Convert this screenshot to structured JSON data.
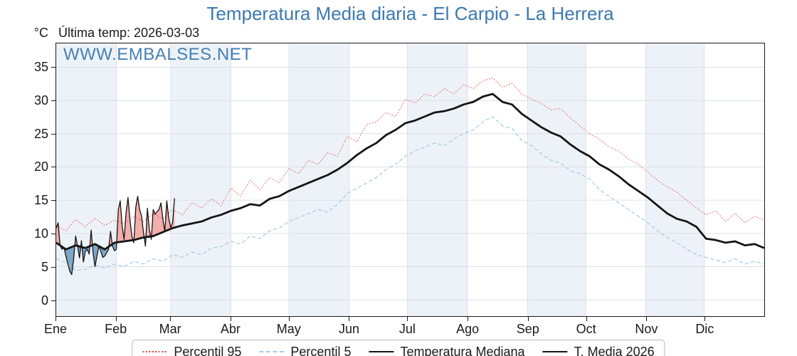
{
  "title": {
    "text": "Temperatura Media diaria - El Carpio - La Herrera",
    "color": "#3b79b1"
  },
  "header": {
    "y_unit_label": "°C",
    "last_temp_annotation": "Última temp: 2026-03-03"
  },
  "watermark": {
    "text": "WWW.EMBALSES.NET",
    "color": "#3b79b1"
  },
  "chart_data": {
    "type": "line",
    "title": "Temperatura Media diaria - El Carpio - La Herrera",
    "x_axis": {
      "unit": "day_of_year",
      "max": 365,
      "month_labels": [
        "Ene",
        "Feb",
        "Mar",
        "Abr",
        "May",
        "Jun",
        "Jul",
        "Ago",
        "Sep",
        "Oct",
        "Nov",
        "Dic"
      ],
      "month_day_starts": [
        0,
        31,
        59,
        90,
        120,
        151,
        181,
        212,
        243,
        273,
        304,
        334
      ]
    },
    "y_axis": {
      "unit": "°C",
      "lim": [
        -2.45,
        38.6
      ],
      "ticks": [
        0,
        5,
        10,
        15,
        20,
        25,
        30,
        35
      ]
    },
    "style": {
      "band_fill": "#edf2f8",
      "grid_color": "#dcdfe4",
      "axis_color": "#1a1a1a",
      "fill_above_color": "#f2aeab",
      "fill_below_color": "#7ea6c8"
    },
    "series": [
      {
        "name": "Percentil 95",
        "color": "#e05252",
        "line": "dotted",
        "width": 1.1,
        "sample_step_days": 5,
        "values": [
          11.2,
          10.4,
          12.1,
          11.0,
          12.3,
          11.2,
          12.0,
          11.4,
          12.6,
          11.8,
          13.0,
          12.2,
          13.6,
          12.8,
          14.6,
          13.8,
          15.2,
          14.2,
          16.8,
          15.6,
          18.0,
          16.6,
          18.4,
          17.6,
          19.8,
          19.0,
          21.0,
          20.4,
          22.2,
          21.6,
          24.6,
          23.8,
          26.4,
          26.8,
          28.2,
          27.6,
          30.2,
          29.6,
          31.0,
          30.6,
          31.8,
          31.0,
          32.4,
          31.8,
          33.0,
          33.4,
          32.0,
          32.6,
          31.0,
          30.2,
          29.6,
          28.6,
          28.8,
          27.4,
          26.2,
          25.0,
          24.2,
          23.0,
          22.4,
          21.2,
          20.4,
          19.2,
          18.0,
          17.0,
          16.2,
          15.0,
          13.8,
          12.8,
          13.4,
          11.8,
          13.0,
          11.6,
          12.6,
          12.0
        ]
      },
      {
        "name": "Percentil 5",
        "color": "#a8cfe4",
        "line": "dashed",
        "width": 1.3,
        "sample_step_days": 5,
        "values": [
          6.2,
          5.6,
          4.4,
          4.6,
          5.2,
          4.8,
          5.4,
          5.0,
          5.8,
          5.4,
          6.2,
          5.8,
          6.8,
          6.4,
          7.2,
          6.8,
          7.8,
          8.0,
          8.8,
          8.4,
          9.6,
          9.2,
          10.4,
          10.8,
          11.8,
          12.4,
          13.0,
          13.6,
          13.2,
          14.4,
          16.0,
          16.8,
          17.6,
          18.4,
          19.6,
          20.4,
          21.6,
          22.4,
          23.0,
          23.6,
          23.2,
          24.2,
          25.0,
          25.6,
          26.8,
          27.6,
          26.2,
          25.8,
          24.0,
          23.2,
          22.0,
          21.0,
          20.6,
          19.4,
          19.0,
          18.2,
          16.6,
          15.6,
          14.6,
          13.6,
          12.6,
          11.6,
          10.4,
          9.4,
          8.6,
          7.6,
          6.8,
          6.4,
          6.0,
          5.6,
          6.2,
          5.4,
          5.8,
          5.4
        ]
      },
      {
        "name": "Temperatura Mediana",
        "color": "#141414",
        "line": "solid",
        "width": 2.8,
        "sample_step_days": 5,
        "values": [
          8.6,
          7.6,
          8.2,
          7.8,
          8.4,
          7.6,
          8.6,
          8.8,
          9.0,
          9.4,
          9.6,
          10.2,
          10.8,
          11.2,
          11.5,
          11.8,
          12.4,
          12.8,
          13.4,
          13.8,
          14.4,
          14.2,
          15.2,
          15.6,
          16.4,
          17.0,
          17.6,
          18.2,
          18.8,
          19.6,
          20.6,
          21.8,
          22.8,
          23.6,
          24.8,
          25.6,
          26.6,
          27.0,
          27.6,
          28.2,
          28.4,
          28.8,
          29.4,
          29.8,
          30.6,
          31.0,
          29.8,
          29.4,
          28.0,
          27.0,
          26.0,
          25.2,
          24.6,
          23.4,
          22.4,
          21.6,
          20.4,
          19.6,
          18.6,
          17.4,
          16.4,
          15.4,
          14.2,
          13.0,
          12.2,
          11.8,
          11.0,
          9.2,
          9.0,
          8.6,
          8.8,
          8.2,
          8.4,
          7.8
        ]
      },
      {
        "name": "T. Media 2026",
        "color": "#141414",
        "line": "solid",
        "width": 1.3,
        "sample_step_days": 1,
        "start_day": 0,
        "values": [
          10.8,
          11.6,
          8.2,
          7.6,
          7.9,
          6.6,
          5.4,
          4.3,
          3.8,
          6.2,
          9.6,
          8.1,
          6.3,
          8.9,
          5.7,
          7.3,
          7.6,
          6.9,
          10.5,
          7.1,
          5.0,
          6.6,
          8.1,
          7.3,
          6.4,
          6.6,
          7.1,
          7.6,
          10.3,
          8.1,
          7.4,
          7.6,
          13.6,
          14.9,
          11.1,
          9.1,
          13.1,
          15.4,
          12.1,
          9.6,
          8.6,
          13.9,
          15.6,
          13.6,
          12.6,
          10.1,
          8.1,
          13.8,
          10.6,
          9.1,
          13.6,
          12.9,
          13.3,
          13.6,
          14.6,
          12.1,
          10.3,
          14.9,
          12.3,
          10.9,
          11.6,
          15.3
        ]
      }
    ],
    "fill_between": {
      "upper": "T. Media 2026",
      "baseline": "Temperatura Mediana"
    },
    "legend": {
      "position": "bottom-center",
      "entries": [
        "Percentil 95",
        "Percentil 5",
        "Temperatura Mediana",
        "T. Media 2026"
      ]
    }
  }
}
